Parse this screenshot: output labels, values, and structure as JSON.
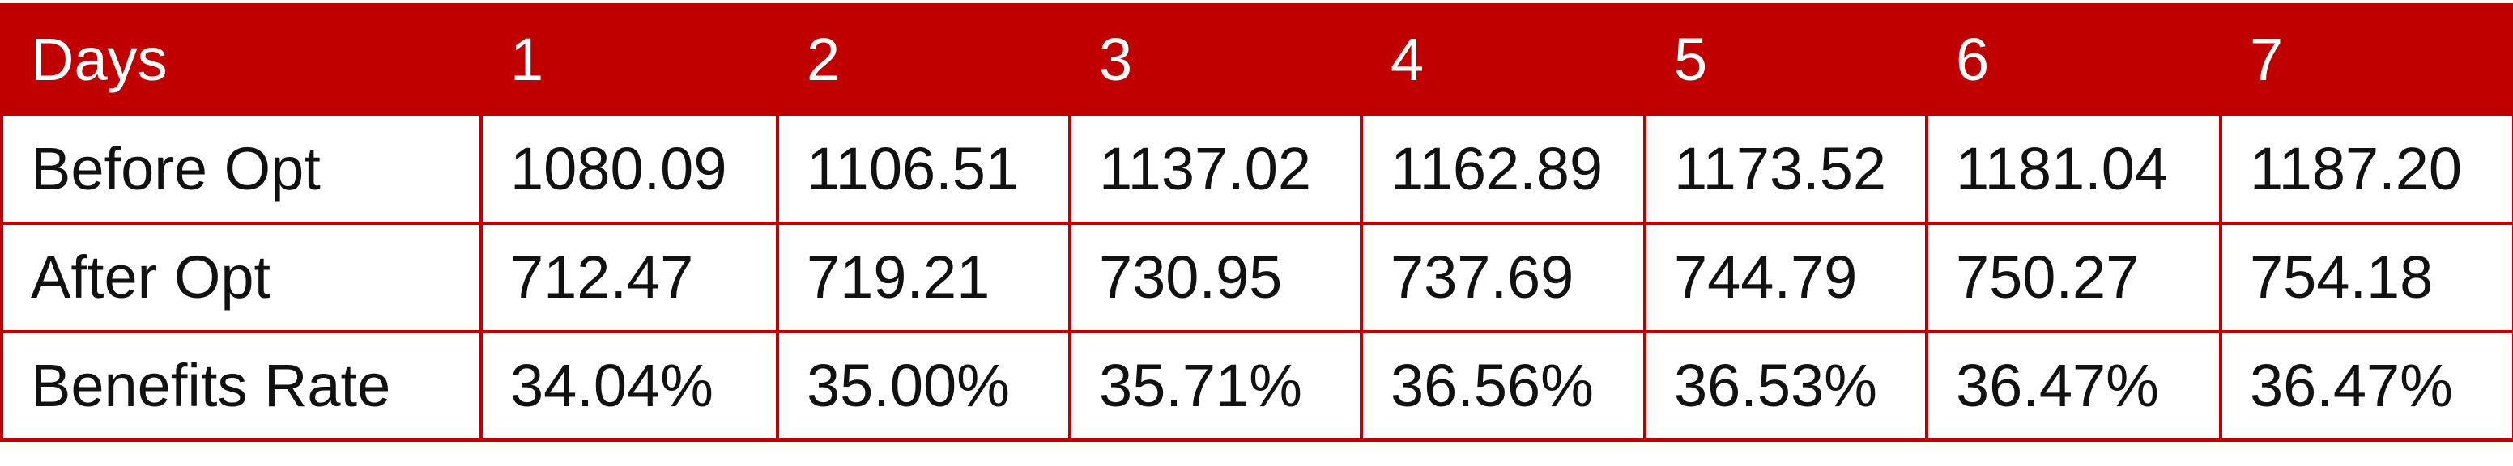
{
  "chart_data": {
    "type": "table",
    "columns": [
      "Days",
      "1",
      "2",
      "3",
      "4",
      "5",
      "6",
      "7"
    ],
    "rows": [
      {
        "label": "Before Opt",
        "values": [
          "1080.09",
          "1106.51",
          "1137.02",
          "1162.89",
          "1173.52",
          "1181.04",
          "1187.20"
        ]
      },
      {
        "label": "After Opt",
        "values": [
          "712.47",
          "719.21",
          "730.95",
          "737.69",
          "744.79",
          "750.27",
          "754.18"
        ]
      },
      {
        "label": "Benefits Rate",
        "values": [
          "34.04%",
          "35.00%",
          "35.71%",
          "36.56%",
          "36.53%",
          "36.47%",
          "36.47%"
        ]
      }
    ],
    "colors": {
      "header_bg": "#C00000",
      "header_text": "#FFFFFF",
      "border": "#C00000",
      "body_text": "#111111"
    }
  }
}
